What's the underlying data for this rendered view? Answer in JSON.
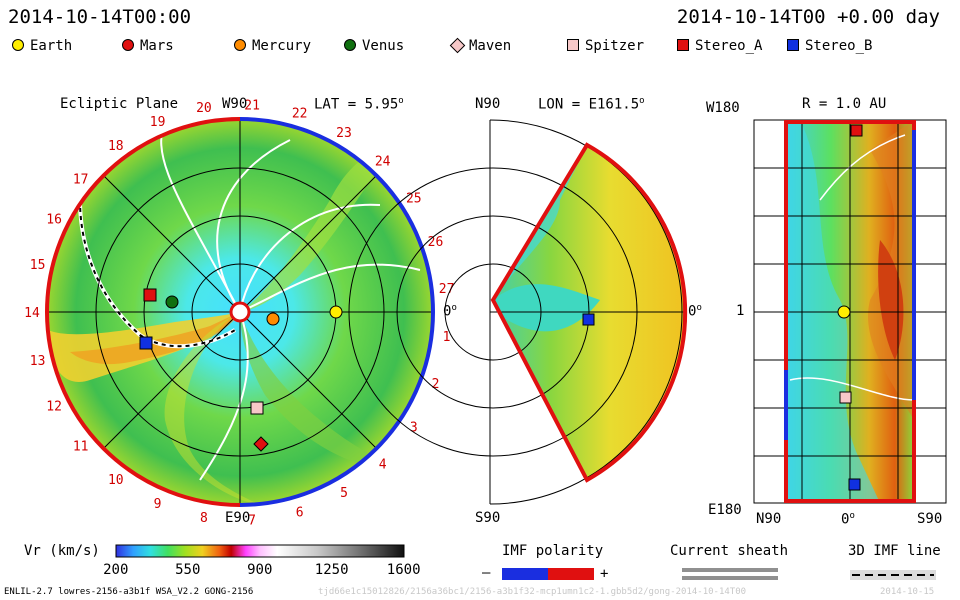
{
  "header": {
    "datetime_left": "2014-10-14T00:00",
    "datetime_right": "2014-10-14T00 +0.00 day"
  },
  "legend": {
    "items": [
      {
        "label": "Earth",
        "color": "#ffee00",
        "shape": "circle"
      },
      {
        "label": "Mars",
        "color": "#e01010",
        "shape": "circle"
      },
      {
        "label": "Mercury",
        "color": "#ff8c00",
        "shape": "circle"
      },
      {
        "label": "Venus",
        "color": "#107010",
        "shape": "circle"
      },
      {
        "label": "Maven",
        "color": "#f7c8c8",
        "shape": "diamond"
      },
      {
        "label": "Spitzer",
        "color": "#f7c8c8",
        "shape": "square"
      },
      {
        "label": "Stereo_A",
        "color": "#e01010",
        "shape": "square"
      },
      {
        "label": "Stereo_B",
        "color": "#1030e0",
        "shape": "square"
      }
    ]
  },
  "chart_data": [
    {
      "type": "heatmap",
      "panel": "ecliptic",
      "title": "Ecliptic Plane",
      "lat_label": "LAT = 5.95",
      "degree_sign": "o",
      "top_label": "W90",
      "bottom_label": "E90",
      "right_label": "0",
      "sector_numbers": [
        "1",
        "2",
        "3",
        "4",
        "5",
        "6",
        "7",
        "8",
        "9",
        "10",
        "11",
        "12",
        "13",
        "14",
        "15",
        "16",
        "17",
        "18",
        "19",
        "20",
        "21",
        "22",
        "23",
        "24",
        "25",
        "26",
        "27"
      ]
    },
    {
      "type": "heatmap",
      "panel": "meridional",
      "title": "LON = E161.5",
      "degree_sign": "o",
      "top_label": "N90",
      "bottom_label": "S90",
      "right_label": "0"
    },
    {
      "type": "heatmap",
      "panel": "radial",
      "title": "R = 1.0 AU",
      "top_label": "W180",
      "bottom_label": "E180",
      "mid_label": "1",
      "x_labels": [
        "N90",
        "0",
        "S90"
      ],
      "degree_sign": "o"
    }
  ],
  "colorbar": {
    "label": "Vr (km/s)",
    "ticks": [
      "200",
      "550",
      "900",
      "1250",
      "1600"
    ],
    "range": [
      200,
      1600
    ]
  },
  "imf_polarity": {
    "label": "IMF polarity",
    "minus": "–",
    "plus": "+"
  },
  "current_sheath": {
    "label": "Current sheath"
  },
  "imf_line": {
    "label": "3D IMF line"
  },
  "footer": {
    "model_info": "ENLIL-2.7 lowres-2156-a3b1f WSA_V2.2 GONG-2156",
    "run_id": "tjd66e1c15012826/2156a36bc1/2156-a3b1f32-mcp1umn1c2-1.gbb5d2/gong-2014-10-14T00",
    "run_date": "2014-10-15"
  }
}
